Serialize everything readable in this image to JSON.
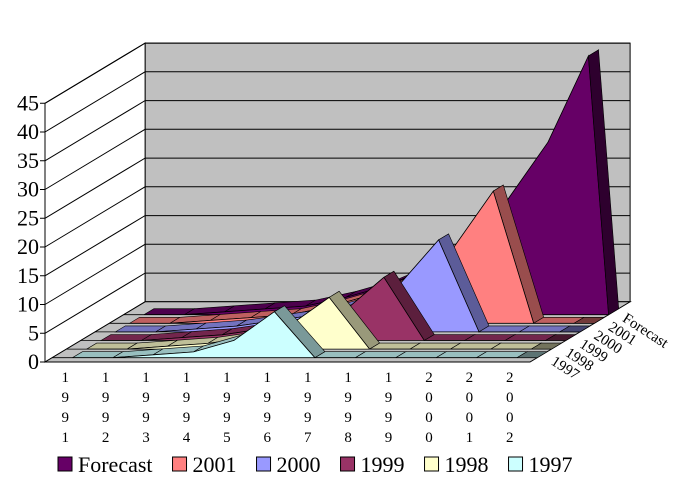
{
  "chart_data": {
    "type": "area",
    "variant": "3d-stacked-depth",
    "title": "",
    "xlabel": "",
    "ylabel": "",
    "ylim": [
      0,
      45
    ],
    "yticks": [
      0,
      5,
      10,
      15,
      20,
      25,
      30,
      35,
      40,
      45
    ],
    "grid": true,
    "legend_position": "bottom",
    "categories": [
      "1991",
      "1992",
      "1993",
      "1994",
      "1995",
      "1996",
      "1997",
      "1998",
      "1999",
      "2000",
      "2001",
      "2002"
    ],
    "series": [
      {
        "name": "1997",
        "color": "#ccffff",
        "values": [
          0,
          0,
          0.5,
          1,
          3,
          8,
          0,
          0,
          0,
          0,
          0,
          0
        ]
      },
      {
        "name": "1998",
        "color": "#ffffcc",
        "values": [
          0,
          0,
          0.5,
          1,
          2,
          4,
          9,
          0,
          0,
          0,
          0,
          0
        ]
      },
      {
        "name": "1999",
        "color": "#993366",
        "values": [
          0,
          0,
          0.5,
          1,
          2,
          3,
          5,
          11,
          0,
          0,
          0,
          0
        ]
      },
      {
        "name": "2000",
        "color": "#9999ff",
        "values": [
          0,
          0,
          0.5,
          1,
          2,
          3,
          5,
          8,
          16,
          0,
          0,
          0
        ]
      },
      {
        "name": "2001",
        "color": "#ff8080",
        "values": [
          0,
          0,
          0.5,
          1,
          1.5,
          3,
          5,
          8,
          13,
          23,
          0,
          0
        ]
      },
      {
        "name": "Forecast",
        "color": "#660066",
        "values": [
          0,
          0,
          0.5,
          1,
          1.5,
          3,
          5,
          8,
          13,
          20,
          30,
          45
        ]
      }
    ]
  }
}
